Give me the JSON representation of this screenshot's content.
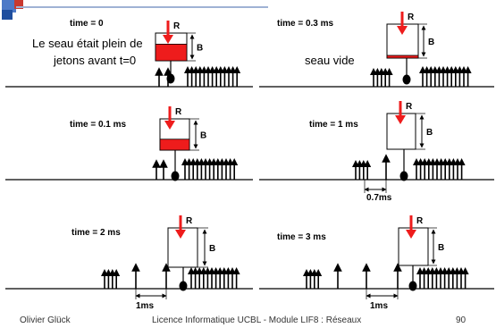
{
  "colors": {
    "accent": "#ee1c1c",
    "header_bar": "#1f4e9e",
    "header_square_left": "#4d79c7",
    "header_square_right": "#c9392f"
  },
  "labels": {
    "rate": "R",
    "bucket": "B"
  },
  "panels": [
    {
      "time": "time = 0",
      "note_lines": [
        "Le seau était plein de",
        "jetons avant t=0"
      ],
      "bucket_fill": 0.6
    },
    {
      "time": "time = 0.3 ms",
      "note_lines": [
        "seau vide"
      ],
      "bucket_fill": 0.05
    },
    {
      "time": "time = 0.1 ms",
      "bucket_fill": 0.35
    },
    {
      "time": "time = 1 ms",
      "interval": "0.7ms",
      "bucket_fill": 0
    },
    {
      "time": "time = 2 ms",
      "interval": "1ms",
      "bucket_fill": 0
    },
    {
      "time": "time = 3 ms",
      "interval": "1ms",
      "bucket_fill": 0
    }
  ],
  "footer": {
    "author": "Olivier Glück",
    "course": "Licence Informatique UCBL - Module LIF8 : Réseaux",
    "page": "90"
  }
}
